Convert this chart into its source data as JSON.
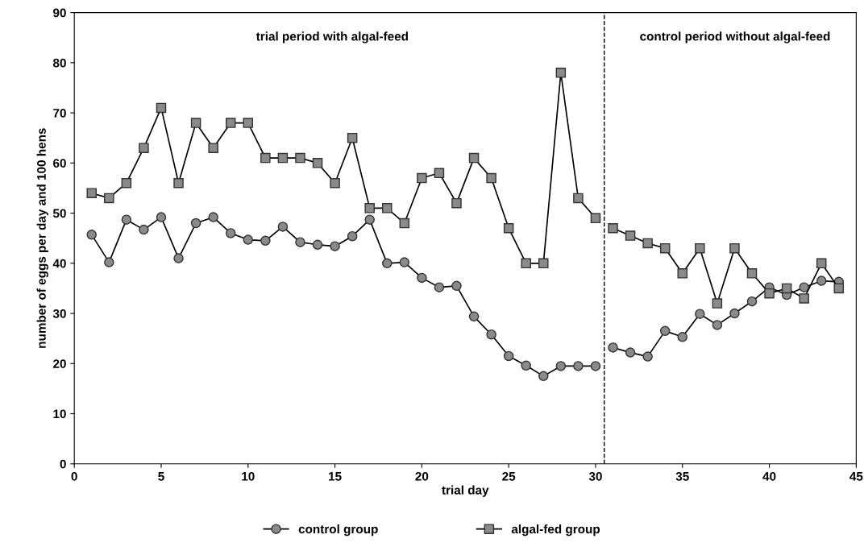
{
  "chart_data": {
    "type": "line",
    "xlabel": "trial day",
    "ylabel": "number of eggs per day and 100 hens",
    "x": [
      1,
      2,
      3,
      4,
      5,
      6,
      7,
      8,
      9,
      10,
      11,
      12,
      13,
      14,
      15,
      16,
      17,
      18,
      19,
      20,
      21,
      22,
      23,
      24,
      25,
      26,
      27,
      28,
      29,
      30,
      30.5,
      31,
      32,
      33,
      34,
      35,
      36,
      37,
      38,
      39,
      40,
      41,
      42,
      43,
      44
    ],
    "series": [
      {
        "name": "control group",
        "color": "#8a8a8a",
        "marker": "circle",
        "values": [
          45.7,
          40.2,
          48.7,
          46.7,
          49.2,
          41,
          48,
          49.2,
          46,
          44.7,
          44.5,
          47.3,
          44.2,
          43.7,
          43.4,
          45.4,
          48.7,
          40,
          40.2,
          37.1,
          35.2,
          35.5,
          29.4,
          25.8,
          21.5,
          19.6,
          17.5,
          19.5,
          19.5,
          19.5,
          null,
          23.2,
          22.2,
          21.4,
          26.5,
          25.3,
          29.9,
          27.7,
          30,
          32.4,
          35.2,
          33.7,
          35.2,
          36.5,
          36.3
        ]
      },
      {
        "name": "algal-fed group",
        "color": "#8a8a8a",
        "marker": "square",
        "values": [
          54,
          53,
          56,
          63,
          71,
          56,
          68,
          63,
          68,
          68,
          61,
          61,
          61,
          60,
          56,
          65,
          51,
          51,
          48,
          57,
          58,
          52,
          61,
          57,
          47,
          40,
          40,
          78,
          53,
          49,
          null,
          47,
          45.5,
          44,
          43,
          38,
          43,
          32,
          43,
          38,
          34,
          35,
          33,
          40,
          35
        ]
      }
    ],
    "xlim": [
      0,
      45
    ],
    "xticks": [
      0,
      5,
      10,
      15,
      20,
      25,
      30,
      35,
      40,
      45
    ],
    "ylim": [
      0,
      90
    ],
    "yticks": [
      0,
      10,
      20,
      30,
      40,
      50,
      60,
      70,
      80,
      90
    ],
    "ref_lines": [
      {
        "axis": "x",
        "value": 30.5,
        "line_style": "dashed",
        "color": "#000000"
      }
    ],
    "annotations": [
      "trial period with algal-feed",
      "control period without algal-feed"
    ],
    "grid": false,
    "legend": "bottom",
    "line_style": "solid"
  }
}
